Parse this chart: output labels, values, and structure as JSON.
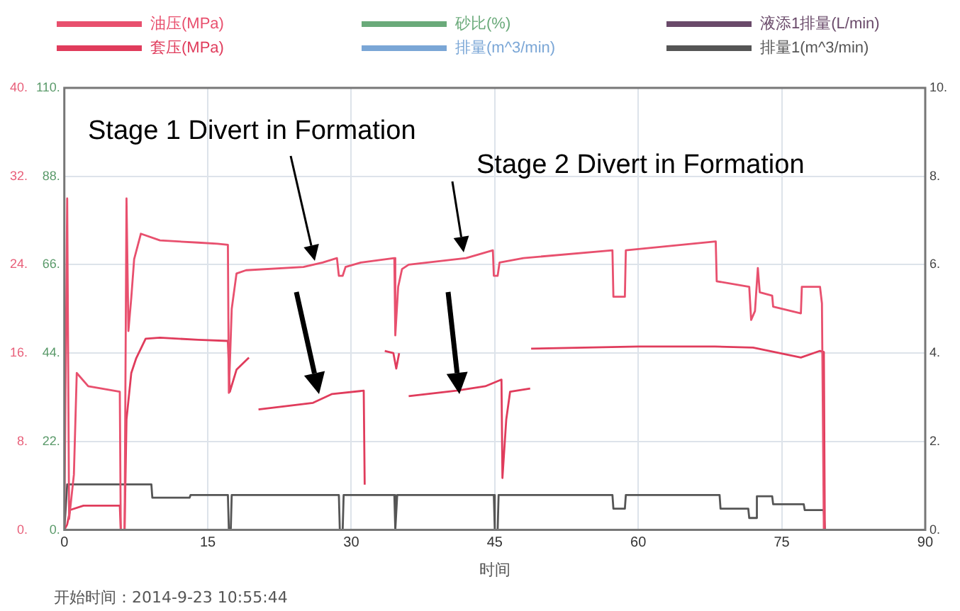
{
  "chart_data": {
    "type": "line",
    "xlabel": "时间",
    "legend": "top",
    "grid": true,
    "xlim": [
      0,
      90
    ],
    "xticks": [
      0,
      15,
      30,
      45,
      60,
      75,
      90
    ],
    "ylim": [
      0,
      40
    ],
    "yticks": [
      {
        "value": 0,
        "label": "0."
      },
      {
        "value": 8,
        "label": "8."
      },
      {
        "value": 16,
        "label": "16."
      },
      {
        "value": 24,
        "label": "24."
      },
      {
        "value": 32,
        "label": "32."
      },
      {
        "value": 40,
        "label": "40."
      }
    ],
    "y2lim": [
      0,
      110
    ],
    "y2ticks": [
      {
        "value": 0,
        "label": "0."
      },
      {
        "value": 22,
        "label": "22."
      },
      {
        "value": 44,
        "label": "44."
      },
      {
        "value": 66,
        "label": "66."
      },
      {
        "value": 88,
        "label": "88."
      },
      {
        "value": 110,
        "label": "110."
      }
    ],
    "y3lim": [
      0,
      10
    ],
    "y3ticks": [
      {
        "value": 0,
        "label": "0."
      },
      {
        "value": 2,
        "label": "2."
      },
      {
        "value": 4,
        "label": "4."
      },
      {
        "value": 6,
        "label": "6."
      },
      {
        "value": 8,
        "label": "8."
      },
      {
        "value": 10,
        "label": "10."
      }
    ],
    "annotations": [
      "Stage 1 Divert in Formation",
      "Stage 2 Divert in Formation",
      "开始时间：2014-9-23 10:55:44"
    ],
    "series": [
      {
        "name": "油压(MPa)",
        "color": "#e8506e",
        "axis": "y",
        "x": [
          0,
          0.3,
          0.5,
          1.0,
          1.3,
          2.5,
          5.8,
          5.9,
          6.3,
          6.5,
          6.7,
          7.0,
          7.3,
          8,
          10,
          14,
          16,
          17.1,
          17.2,
          17.5,
          18,
          19,
          25,
          27,
          28.5,
          28.7,
          29.1,
          29.4,
          31,
          34.5,
          34.6,
          34.9,
          35.3,
          36,
          42,
          44.8,
          44.9,
          45.3,
          45.5,
          48,
          57.3,
          57.4,
          58.6,
          58.7,
          68.1,
          68.2,
          71.6,
          71.8,
          72.2,
          72.5,
          72.7,
          74,
          74.1,
          77,
          77.1,
          79,
          79.2,
          79.4
        ],
        "values": [
          0,
          30,
          1,
          5,
          14.2,
          13,
          12.5,
          0,
          0,
          30,
          18,
          21,
          24.5,
          26.8,
          26.2,
          26,
          25.9,
          25.8,
          12.4,
          20,
          23.2,
          23.5,
          23.8,
          24.2,
          24.6,
          23,
          23,
          23.8,
          24.2,
          24.6,
          17.6,
          22,
          23.6,
          24,
          24.6,
          25.3,
          23,
          23,
          24.2,
          24.6,
          25.3,
          21.1,
          21.1,
          25.3,
          26.1,
          22.5,
          22,
          19,
          19.8,
          23.7,
          21.5,
          21.2,
          20.2,
          19.6,
          22,
          22,
          20.5,
          0
        ]
      },
      {
        "name": "套压(MPa)",
        "color": "#e03c5c",
        "axis": "y",
        "x": [
          0,
          0.3,
          0.6,
          2,
          5.8,
          5.9,
          6.3,
          6.5,
          7,
          7.5,
          8.5,
          10,
          14,
          17.1,
          17.3,
          18,
          19.3,
          19.8,
          20.3,
          26,
          28,
          31.3,
          31.4,
          32.5,
          33.5,
          34.4,
          34.7,
          35,
          35.5,
          36,
          41,
          44,
          45.7,
          45.8,
          46.2,
          46.6,
          48.7,
          48.75,
          48.8,
          60,
          68,
          72,
          77,
          79,
          79.4,
          79.5
        ],
        "values": [
          0,
          0.5,
          1.8,
          2.2,
          2.2,
          0,
          0,
          10,
          14.2,
          15.5,
          17.3,
          17.4,
          17.2,
          17.1,
          12.5,
          14.5,
          15.6,
          null,
          10.9,
          11.5,
          12.3,
          12.6,
          4.1,
          null,
          16.2,
          16,
          14.6,
          16,
          null,
          12.1,
          12.6,
          13,
          13.6,
          4.7,
          10,
          12.5,
          12.8,
          null,
          16.4,
          16.6,
          16.6,
          16.5,
          15.6,
          16.2,
          16.1,
          0
        ]
      },
      {
        "name": "砂比(%)",
        "color": "#6aaa7a",
        "axis": "y2"
      },
      {
        "name": "排量(m^3/min)",
        "color": "#7aa6d6"
      },
      {
        "name": "液添1排量(L/min)",
        "color": "#6a4a6a"
      },
      {
        "name": "排量1(m^3/min)",
        "color": "#555555",
        "axis": "y3",
        "x": [
          0,
          0.3,
          9.1,
          9.2,
          13.1,
          13.2,
          17.1,
          17.2,
          17.4,
          17.5,
          28.7,
          28.8,
          29.1,
          29.2,
          34.5,
          34.6,
          34.8,
          44.9,
          45,
          45.3,
          45.4,
          57.3,
          57.4,
          58.6,
          58.7,
          68.5,
          68.6,
          71.5,
          71.6,
          72.3,
          72.4,
          74,
          74.1,
          77.3,
          77.4,
          79.4,
          79.5
        ],
        "values": [
          0,
          1.03,
          1.03,
          0.73,
          0.73,
          0.79,
          0.79,
          0,
          0,
          0.79,
          0.79,
          0,
          0,
          0.79,
          0.79,
          0,
          0.79,
          0.79,
          0,
          0,
          0.79,
          0.79,
          0.48,
          0.48,
          0.79,
          0.79,
          0.48,
          0.48,
          0.27,
          0.27,
          0.76,
          0.76,
          0.58,
          0.58,
          0.45,
          0.45,
          0
        ]
      }
    ]
  }
}
